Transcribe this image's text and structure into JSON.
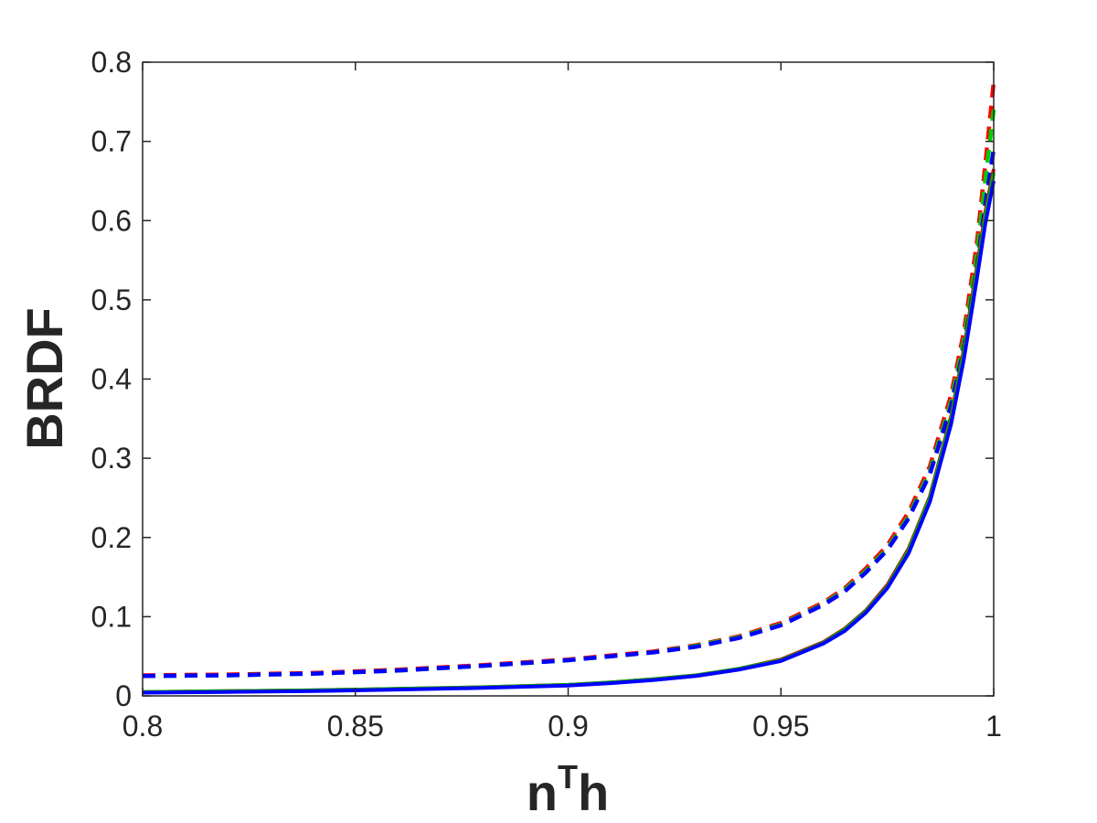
{
  "chart_data": {
    "type": "line",
    "xlabel": "n",
    "xlabel_sup": "T",
    "xlabel_tail": "h",
    "ylabel": "BRDF",
    "xlim": [
      0.8,
      1.0
    ],
    "ylim": [
      0,
      0.8
    ],
    "xticks": [
      0.8,
      0.85,
      0.9,
      0.95,
      1.0
    ],
    "xtick_labels": [
      "0.8",
      "0.85",
      "0.9",
      "0.95",
      "1"
    ],
    "yticks": [
      0,
      0.1,
      0.2,
      0.3,
      0.4,
      0.5,
      0.6,
      0.7,
      0.8
    ],
    "ytick_labels": [
      "0",
      "0.1",
      "0.2",
      "0.3",
      "0.4",
      "0.5",
      "0.6",
      "0.7",
      "0.8"
    ],
    "grid": false,
    "x": [
      0.8,
      0.82,
      0.84,
      0.86,
      0.88,
      0.9,
      0.91,
      0.92,
      0.93,
      0.94,
      0.95,
      0.96,
      0.965,
      0.97,
      0.975,
      0.98,
      0.985,
      0.99,
      0.993,
      0.996,
      0.998,
      1.0
    ],
    "series": [
      {
        "style": "dashed",
        "color": "#ff0000",
        "values": [
          0.026,
          0.027,
          0.029,
          0.033,
          0.039,
          0.046,
          0.051,
          0.056,
          0.064,
          0.075,
          0.092,
          0.118,
          0.136,
          0.161,
          0.19,
          0.232,
          0.29,
          0.38,
          0.46,
          0.57,
          0.67,
          0.775
        ]
      },
      {
        "style": "dashed",
        "color": "#00cc00",
        "values": [
          0.025,
          0.026,
          0.028,
          0.032,
          0.038,
          0.045,
          0.05,
          0.055,
          0.063,
          0.074,
          0.09,
          0.116,
          0.134,
          0.158,
          0.186,
          0.227,
          0.284,
          0.372,
          0.45,
          0.555,
          0.65,
          0.74
        ]
      },
      {
        "style": "dashed",
        "color": "#0000ff",
        "values": [
          0.025,
          0.026,
          0.028,
          0.032,
          0.038,
          0.045,
          0.05,
          0.055,
          0.062,
          0.073,
          0.089,
          0.115,
          0.132,
          0.156,
          0.184,
          0.224,
          0.28,
          0.366,
          0.44,
          0.54,
          0.62,
          0.69
        ]
      },
      {
        "style": "solid",
        "color": "#cc0000",
        "values": [
          0.005,
          0.006,
          0.007,
          0.009,
          0.011,
          0.014,
          0.017,
          0.021,
          0.026,
          0.034,
          0.046,
          0.068,
          0.085,
          0.108,
          0.14,
          0.186,
          0.252,
          0.353,
          0.438,
          0.54,
          0.61,
          0.665
        ]
      },
      {
        "style": "solid",
        "color": "#00aa00",
        "values": [
          0.005,
          0.006,
          0.007,
          0.009,
          0.011,
          0.014,
          0.017,
          0.021,
          0.026,
          0.034,
          0.045,
          0.067,
          0.084,
          0.107,
          0.138,
          0.184,
          0.25,
          0.35,
          0.434,
          0.535,
          0.605,
          0.66
        ]
      },
      {
        "style": "solid",
        "color": "#0000ff",
        "values": [
          0.004,
          0.005,
          0.006,
          0.008,
          0.01,
          0.013,
          0.016,
          0.02,
          0.025,
          0.033,
          0.044,
          0.066,
          0.082,
          0.105,
          0.136,
          0.18,
          0.245,
          0.343,
          0.425,
          0.525,
          0.595,
          0.65
        ]
      }
    ]
  }
}
